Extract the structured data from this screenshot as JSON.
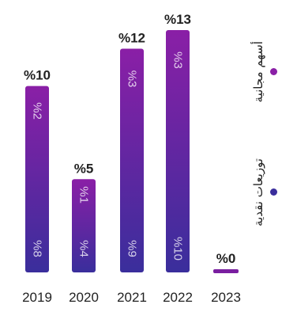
{
  "chart_data": {
    "type": "bar",
    "stacked": true,
    "categories": [
      "2019",
      "2020",
      "2021",
      "2022",
      "2023"
    ],
    "totals": [
      10,
      5,
      12,
      13,
      0
    ],
    "total_labels": [
      "%10",
      "%5",
      "%12",
      "%13",
      "%0"
    ],
    "series": [
      {
        "name": "توزيعات نقدية",
        "values": [
          8,
          4,
          9,
          10,
          0
        ],
        "labels": [
          "%8",
          "%4",
          "%9",
          "%10",
          ""
        ],
        "color": "#3a2e9c"
      },
      {
        "name": "أسهم مجانية",
        "values": [
          2,
          1,
          3,
          3,
          0
        ],
        "labels": [
          "%2",
          "%1",
          "%3",
          "%3",
          ""
        ],
        "color": "#8a1fa6"
      }
    ],
    "ylim": [
      0,
      13
    ],
    "grid": false,
    "legend": "right"
  },
  "colors": {
    "text": "#222222",
    "bar_bottom": "#3a2e9c",
    "bar_top": "#8a1fa6",
    "zero_bar": "#7a1fa0"
  }
}
